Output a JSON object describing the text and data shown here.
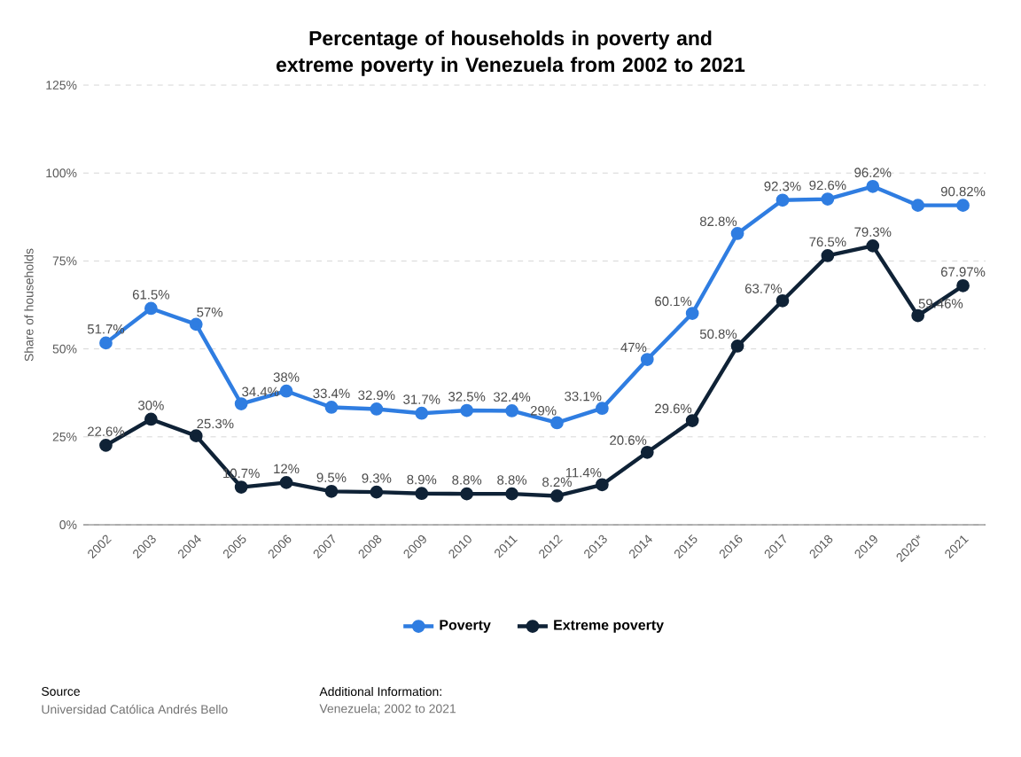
{
  "chart_data": {
    "type": "line",
    "title": "Percentage of households in poverty and extreme poverty in Venezuela from 2002 to 2021",
    "ylabel": "Share of households",
    "categories": [
      "2002",
      "2003",
      "2004",
      "2005",
      "2006",
      "2007",
      "2008",
      "2009",
      "2010",
      "2011",
      "2012",
      "2013",
      "2014",
      "2015",
      "2016",
      "2017",
      "2018",
      "2019",
      "2020*",
      "2021"
    ],
    "series": [
      {
        "name": "Poverty",
        "color": "#2f7de1",
        "values": [
          51.7,
          61.5,
          57,
          34.4,
          38,
          33.4,
          32.9,
          31.7,
          32.5,
          32.4,
          29,
          33.1,
          47,
          60.1,
          82.8,
          92.3,
          92.6,
          96.2,
          90.82,
          90.82
        ],
        "value_labels": [
          "51.7%",
          "61.5%",
          "57%",
          "34.4%",
          "38%",
          "33.4%",
          "32.9%",
          "31.7%",
          "32.5%",
          "32.4%",
          "29%",
          "33.1%",
          "47%",
          "60.1%",
          "82.8%",
          "92.3%",
          "92.6%",
          "96.2%",
          null,
          "90.82%"
        ]
      },
      {
        "name": "Extreme poverty",
        "color": "#0f2236",
        "values": [
          22.6,
          30,
          25.3,
          10.7,
          12,
          9.5,
          9.3,
          8.9,
          8.8,
          8.8,
          8.2,
          11.4,
          20.6,
          29.6,
          50.8,
          63.7,
          76.5,
          79.3,
          59.46,
          67.97
        ],
        "value_labels": [
          "22.6%",
          "30%",
          "25.3%",
          "10.7%",
          "12%",
          "9.5%",
          "9.3%",
          "8.9%",
          "8.8%",
          "8.8%",
          "8.2%",
          "11.4%",
          "20.6%",
          "29.6%",
          "50.8%",
          "63.7%",
          "76.5%",
          "79.3%",
          "59.46%",
          "67.97%"
        ]
      }
    ],
    "ylim": [
      0,
      125
    ],
    "yticks": [
      {
        "value": 0,
        "label": "0%"
      },
      {
        "value": 25,
        "label": "25%"
      },
      {
        "value": 50,
        "label": "50%"
      },
      {
        "value": 75,
        "label": "75%"
      },
      {
        "value": 100,
        "label": "100%"
      },
      {
        "value": 125,
        "label": "125%"
      }
    ],
    "grid": "y",
    "legend": "bottom",
    "marker": "circle",
    "line_style": "solid",
    "annotations": [
      "Source",
      "Universidad Católica Andrés Bello",
      "Additional Information:",
      "Venezuela; 2002 to 2021"
    ]
  }
}
